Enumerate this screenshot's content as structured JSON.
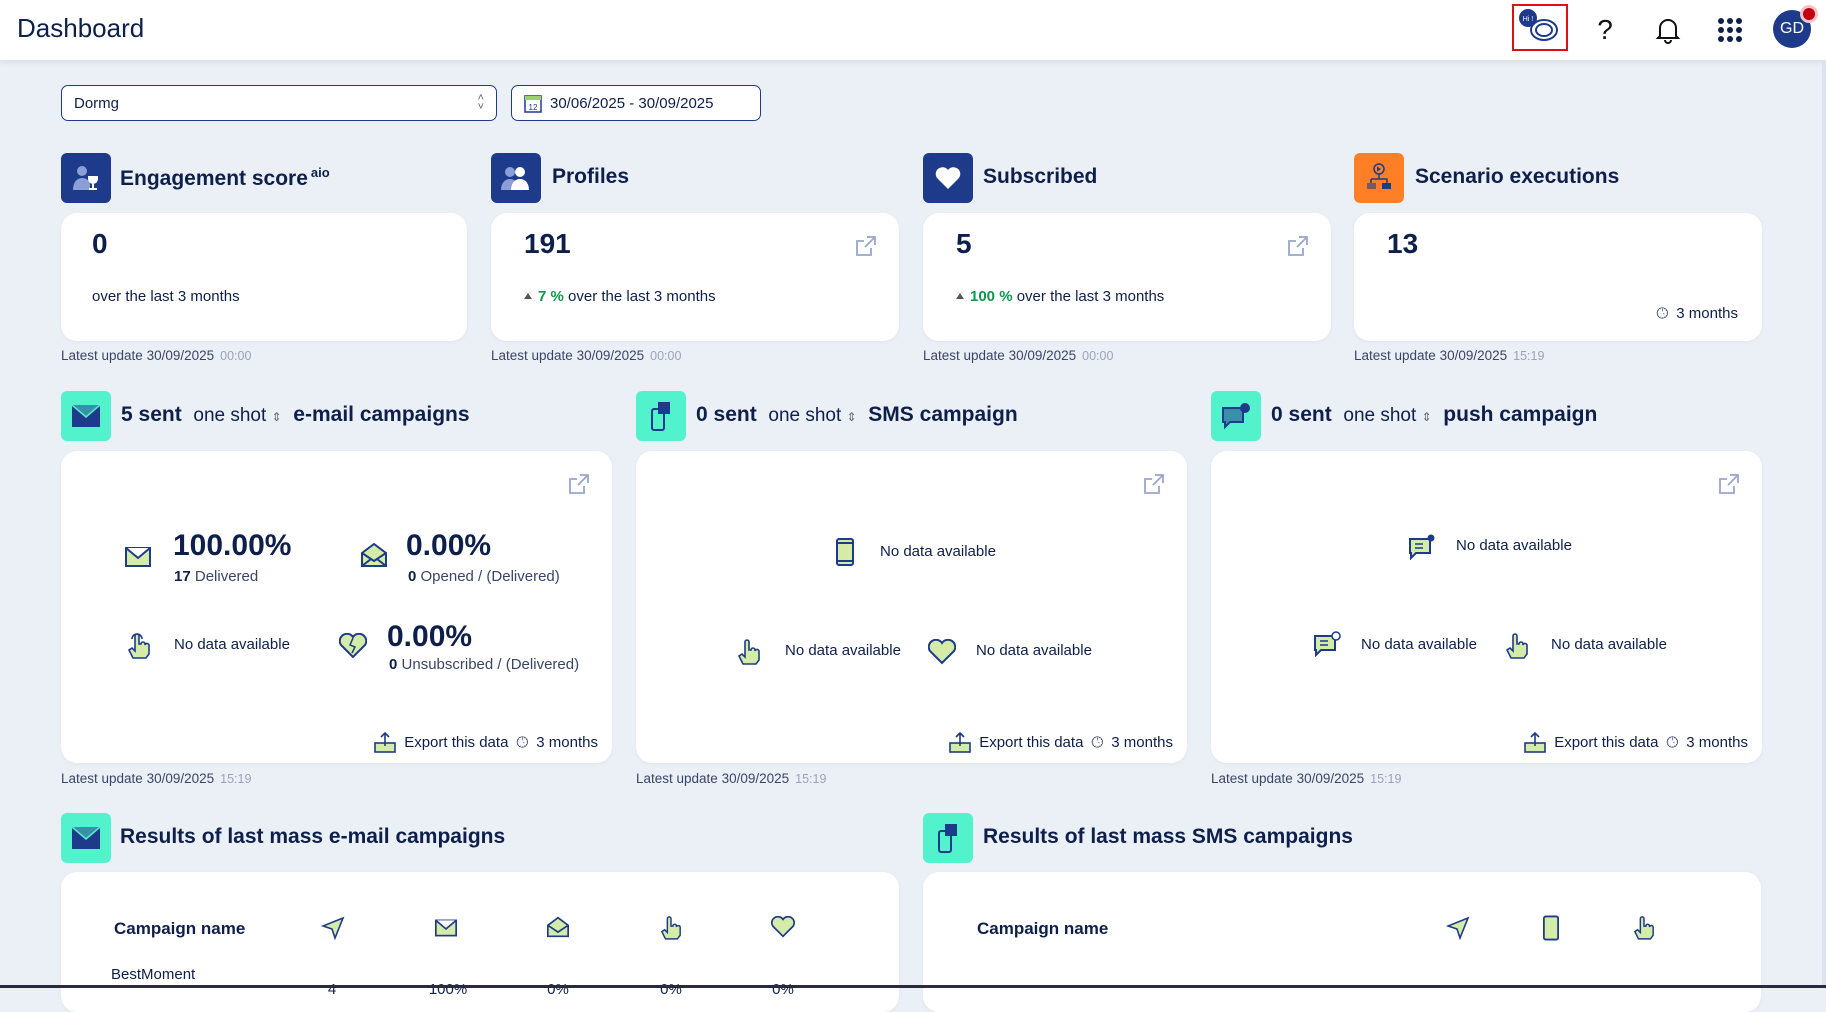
{
  "header": {
    "title": "Dashboard",
    "chatbot_badge": "Hi !",
    "avatar_initials": "GD"
  },
  "filters": {
    "account": "Dormg",
    "date_range": "30/06/2025 - 30/09/2025"
  },
  "stats": [
    {
      "title": "Engagement score",
      "badge": "aio",
      "value": "0",
      "change": "",
      "caption": "over the last 3 months",
      "update": "Latest update 30/09/2025",
      "time": "00:00"
    },
    {
      "title": "Profiles",
      "value": "191",
      "change": "7 %",
      "caption": "over the last 3 months",
      "update": "Latest update 30/09/2025",
      "time": "00:00"
    },
    {
      "title": "Subscribed",
      "value": "5",
      "change": "100 %",
      "caption": "over the last 3 months",
      "update": "Latest update 30/09/2025",
      "time": "00:00"
    },
    {
      "title": "Scenario executions",
      "value": "13",
      "period": "3 months",
      "update": "Latest update 30/09/2025",
      "time": "15:19"
    }
  ],
  "campaigns": {
    "email": {
      "sent": "5 sent",
      "type": "one shot",
      "title": "e-mail campaigns",
      "delivered_pct": "100.00%",
      "delivered_n": "17",
      "delivered_lbl": "Delivered",
      "opened_pct": "0.00%",
      "opened_n": "0",
      "opened_lbl": "Opened / (Delivered)",
      "clicks": "No data available",
      "unsub_pct": "0.00%",
      "unsub_n": "0",
      "unsub_lbl": "Unsubscribed / (Delivered)",
      "export": "Export this data",
      "period": "3 months",
      "update": "Latest update 30/09/2025",
      "time": "15:19"
    },
    "sms": {
      "sent": "0 sent",
      "type": "one shot",
      "title": "SMS campaign",
      "delivered": "No data available",
      "clicks": "No data available",
      "unsub": "No data available",
      "export": "Export this data",
      "period": "3 months",
      "update": "Latest update 30/09/2025",
      "time": "15:19"
    },
    "push": {
      "sent": "0 sent",
      "type": "one shot",
      "title": "push campaign",
      "received": "No data available",
      "opened": "No data available",
      "clicks": "No data available",
      "export": "Export this data",
      "period": "3 months",
      "update": "Latest update 30/09/2025",
      "time": "15:19"
    }
  },
  "results": {
    "email": {
      "title": "Results of last mass e-mail campaigns",
      "col_name": "Campaign name",
      "rows": [
        {
          "name": "BestMoment",
          "sent": "4",
          "delivered": "100%",
          "opened": "0%",
          "clicked": "0%",
          "unsub": "0%"
        }
      ]
    },
    "sms": {
      "title": "Results of last mass SMS campaigns",
      "col_name": "Campaign name"
    }
  }
}
